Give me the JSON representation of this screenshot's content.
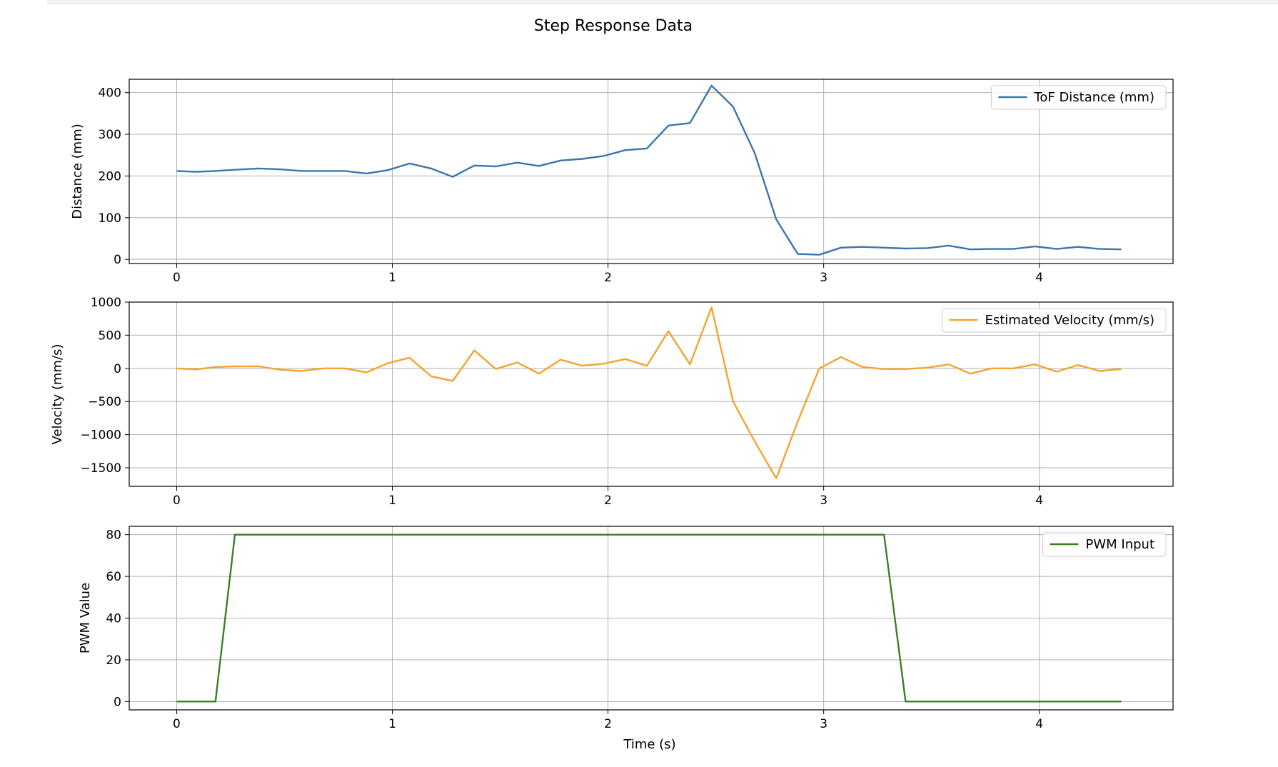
{
  "chart_data": {
    "title": "Step Response Data",
    "xlabel": "Time (s)",
    "x_ticks": [
      0,
      1,
      2,
      3,
      4
    ],
    "xlim": [
      -0.22,
      4.62
    ],
    "grid": true,
    "legend_position": "upper-right",
    "x": [
      0,
      0.09,
      0.18,
      0.27,
      0.38,
      0.48,
      0.58,
      0.68,
      0.78,
      0.88,
      0.98,
      1.08,
      1.18,
      1.28,
      1.38,
      1.48,
      1.58,
      1.68,
      1.78,
      1.88,
      1.98,
      2.08,
      2.18,
      2.28,
      2.38,
      2.48,
      2.58,
      2.68,
      2.78,
      2.88,
      2.98,
      3.08,
      3.18,
      3.28,
      3.38,
      3.48,
      3.58,
      3.68,
      3.78,
      3.88,
      3.98,
      4.08,
      4.18,
      4.28,
      4.38
    ],
    "subplots": [
      {
        "type": "line",
        "ylabel": "Distance (mm)",
        "ylim": [
          -10,
          432
        ],
        "y_ticks": [
          0,
          100,
          200,
          300,
          400
        ],
        "series": [
          {
            "name": "ToF Distance (mm)",
            "color": "#3b75af",
            "values": [
              212,
              210,
              212,
              215,
              218,
              216,
              212,
              212,
              212,
              206,
              214,
              230,
              218,
              198,
              225,
              223,
              232,
              224,
              237,
              241,
              248,
              262,
              266,
              321,
              327,
              417,
              366,
              255,
              96,
              13,
              11,
              28,
              30,
              28,
              26,
              27,
              33,
              24,
              25,
              25,
              31,
              25,
              30,
              25,
              24
            ]
          }
        ]
      },
      {
        "type": "line",
        "ylabel": "Velocity (mm/s)",
        "ylim": [
          -1780,
          1000
        ],
        "y_ticks": [
          1000,
          500,
          0,
          -500,
          -1000,
          -1500
        ],
        "y_tick_labels": [
          "1000",
          "500",
          "0",
          "−500",
          "−1000",
          "−1500"
        ],
        "series": [
          {
            "name": "Estimated Velocity (mm/s)",
            "color": "#f5a32d",
            "values": [
              0,
              -15,
              20,
              30,
              30,
              -20,
              -40,
              0,
              0,
              -60,
              80,
              160,
              -120,
              -190,
              270,
              -10,
              90,
              -80,
              130,
              40,
              70,
              140,
              40,
              560,
              60,
              920,
              -500,
              -1100,
              -1660,
              -800,
              0,
              170,
              20,
              -10,
              -10,
              10,
              60,
              -80,
              0,
              0,
              60,
              -50,
              50,
              -40,
              -10
            ]
          }
        ]
      },
      {
        "type": "line",
        "ylabel": "PWM Value",
        "ylim": [
          -4,
          84
        ],
        "y_ticks": [
          0,
          20,
          40,
          60,
          80
        ],
        "series": [
          {
            "name": "PWM Input",
            "color": "#3a8026",
            "values": [
              0,
              0,
              0,
              80,
              80,
              80,
              80,
              80,
              80,
              80,
              80,
              80,
              80,
              80,
              80,
              80,
              80,
              80,
              80,
              80,
              80,
              80,
              80,
              80,
              80,
              80,
              80,
              80,
              80,
              80,
              80,
              80,
              80,
              80,
              0,
              0,
              0,
              0,
              0,
              0,
              0,
              0,
              0,
              0,
              0
            ]
          }
        ]
      }
    ]
  }
}
